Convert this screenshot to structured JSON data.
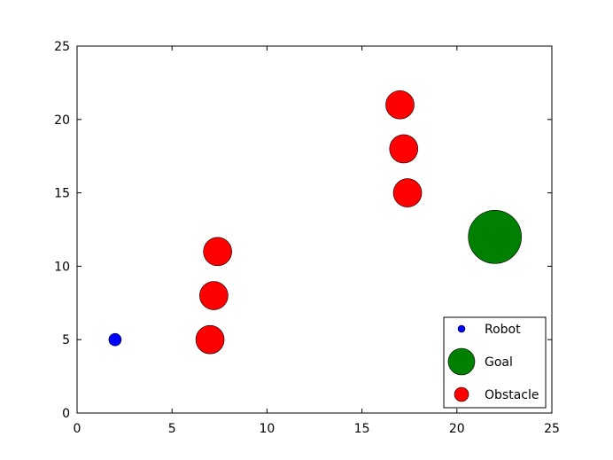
{
  "chart_data": {
    "type": "scatter",
    "title": "",
    "xlabel": "",
    "ylabel": "",
    "xlim": [
      0,
      25
    ],
    "ylim": [
      0,
      25
    ],
    "x_ticks": [
      0,
      5,
      10,
      15,
      20,
      25
    ],
    "y_ticks": [
      0,
      5,
      10,
      15,
      20,
      25
    ],
    "x_tick_labels": [
      "0",
      "5",
      "10",
      "15",
      "20",
      "25"
    ],
    "y_tick_labels": [
      "0",
      "5",
      "10",
      "15",
      "20",
      "25"
    ],
    "grid": false,
    "legend": {
      "placement": "lower-right",
      "entries": [
        "Robot",
        "Goal",
        "Obstacle"
      ]
    },
    "series": [
      {
        "name": "Robot",
        "color": "#0000ff",
        "marker_size": "small",
        "points": [
          [
            2,
            5
          ]
        ]
      },
      {
        "name": "Goal",
        "color": "#008000",
        "marker_size": "large",
        "points": [
          [
            22,
            12
          ]
        ]
      },
      {
        "name": "Obstacle",
        "color": "#ff0000",
        "marker_size": "medium",
        "points": [
          [
            7,
            5
          ],
          [
            7.2,
            8
          ],
          [
            7.4,
            11
          ],
          [
            17,
            21
          ],
          [
            17.2,
            18
          ],
          [
            17.4,
            15
          ]
        ]
      }
    ]
  }
}
